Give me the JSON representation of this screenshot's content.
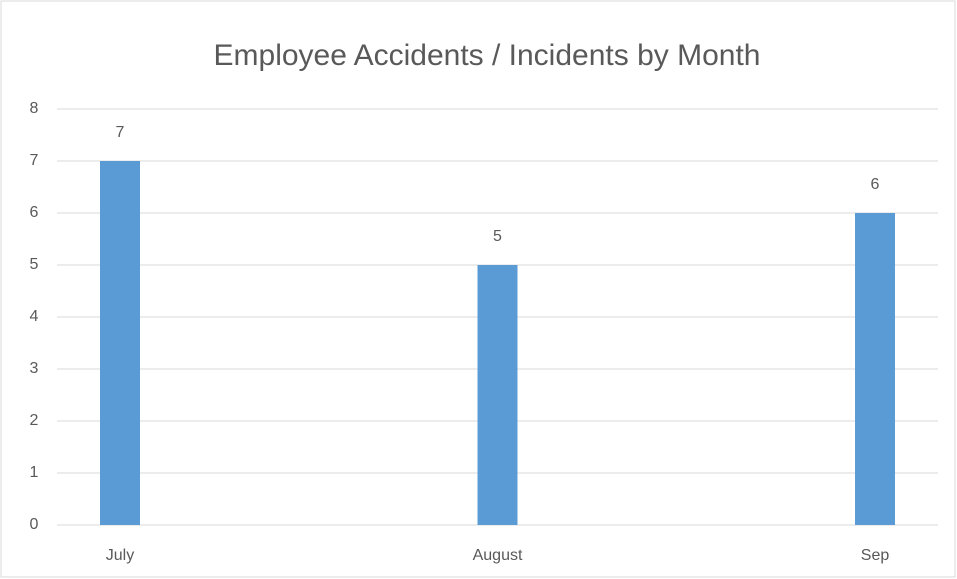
{
  "chart_data": {
    "type": "bar",
    "title": "Employee Accidents / Incidents by Month",
    "categories": [
      "July",
      "August",
      "Sep"
    ],
    "values": [
      7,
      5,
      6
    ],
    "color": "#5b9bd5",
    "ylim": [
      0,
      8
    ],
    "yticks": [
      0,
      1,
      2,
      3,
      4,
      5,
      6,
      7,
      8
    ],
    "grid": true
  }
}
